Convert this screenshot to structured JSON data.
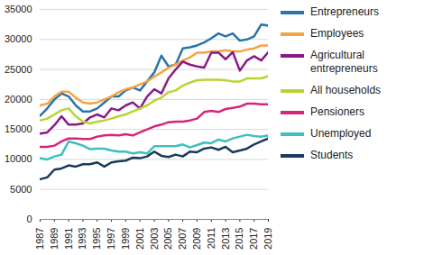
{
  "chart_data": {
    "type": "line",
    "x": [
      1987,
      1988,
      1989,
      1990,
      1991,
      1992,
      1993,
      1994,
      1995,
      1996,
      1997,
      1998,
      1999,
      2000,
      2001,
      2002,
      2003,
      2004,
      2005,
      2006,
      2007,
      2008,
      2009,
      2010,
      2011,
      2012,
      2013,
      2014,
      2015,
      2016,
      2017,
      2018,
      2019
    ],
    "xlim": [
      1987,
      2019
    ],
    "xticks": [
      1987,
      1989,
      1991,
      1993,
      1995,
      1997,
      1999,
      2001,
      2003,
      2005,
      2007,
      2009,
      2011,
      2013,
      2015,
      2017,
      2019
    ],
    "ylim": [
      0,
      35000
    ],
    "yticks": [
      0,
      5000,
      10000,
      15000,
      20000,
      25000,
      30000,
      35000
    ],
    "grid": true,
    "legend": "right",
    "series": [
      {
        "name": "Entrepreneurs",
        "color": "#2a74a8",
        "values": [
          17300,
          18500,
          20000,
          21000,
          20500,
          19000,
          18000,
          18000,
          18500,
          19500,
          20500,
          20500,
          21500,
          22000,
          21500,
          23000,
          24500,
          27300,
          25500,
          25800,
          28500,
          28700,
          29000,
          29500,
          30200,
          31000,
          30500,
          31000,
          29800,
          30000,
          30500,
          32500,
          32300
        ]
      },
      {
        "name": "Employees",
        "color": "#f5a344",
        "values": [
          19000,
          19300,
          20500,
          21300,
          21300,
          20300,
          19500,
          19300,
          19500,
          20000,
          20500,
          21200,
          21700,
          22000,
          22500,
          23000,
          23800,
          24500,
          25300,
          25800,
          26500,
          27000,
          27800,
          27800,
          28000,
          28000,
          28200,
          28000,
          28000,
          28300,
          28500,
          29000,
          29000
        ]
      },
      {
        "name": "Agricultural entrepreneurs",
        "color": "#8b1a89",
        "values": [
          14300,
          14500,
          15700,
          17200,
          15800,
          15800,
          16000,
          17000,
          17500,
          17000,
          18500,
          18200,
          19000,
          19500,
          18500,
          20500,
          21700,
          21000,
          23500,
          25000,
          26300,
          25800,
          25500,
          25300,
          27800,
          27800,
          26700,
          27900,
          24800,
          26500,
          27200,
          26500,
          27900
        ]
      },
      {
        "name": "All households",
        "color": "#b8d433",
        "values": [
          16500,
          16800,
          17500,
          18200,
          18500,
          17200,
          16300,
          16000,
          16300,
          16500,
          16800,
          17200,
          17500,
          18000,
          18500,
          19000,
          19800,
          20300,
          21200,
          21500,
          22300,
          22800,
          23200,
          23300,
          23300,
          23300,
          23200,
          23000,
          23000,
          23500,
          23500,
          23500,
          23900
        ]
      },
      {
        "name": "Pensioners",
        "color": "#d6257a",
        "values": [
          12100,
          12100,
          12300,
          13000,
          13500,
          13500,
          13400,
          13400,
          13800,
          14000,
          14100,
          14000,
          14200,
          14000,
          14500,
          15000,
          15500,
          15800,
          16200,
          16300,
          16300,
          16500,
          16800,
          17900,
          18100,
          17900,
          18400,
          18600,
          18800,
          19300,
          19300,
          19200,
          19200
        ]
      },
      {
        "name": "Unemployed",
        "color": "#3cc0c0",
        "values": [
          10200,
          10000,
          10500,
          10800,
          13000,
          12700,
          12300,
          11700,
          11800,
          11800,
          11500,
          11300,
          11300,
          11000,
          11200,
          11000,
          12200,
          12200,
          12200,
          12200,
          12500,
          12000,
          12400,
          12800,
          12700,
          13300,
          13000,
          13500,
          13800,
          14100,
          13900,
          13800,
          14000
        ]
      },
      {
        "name": "Students",
        "color": "#1a3a5c",
        "values": [
          6700,
          7000,
          8300,
          8500,
          9000,
          8800,
          9200,
          9200,
          9500,
          8800,
          9500,
          9700,
          9800,
          10300,
          10200,
          10500,
          11300,
          10600,
          10400,
          10800,
          10500,
          11300,
          11200,
          11800,
          12000,
          11600,
          12100,
          11200,
          11500,
          11800,
          12500,
          13000,
          13500
        ]
      }
    ]
  }
}
